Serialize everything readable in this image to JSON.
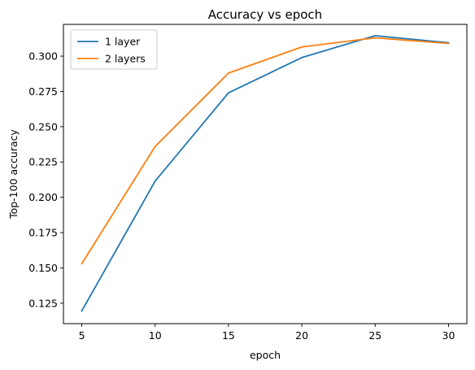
{
  "chart_data": {
    "type": "line",
    "title": "Accuracy vs epoch",
    "xlabel": "epoch",
    "ylabel": "Top-100 accuracy",
    "x": [
      5,
      10,
      15,
      20,
      25,
      30
    ],
    "xlim": [
      3.75,
      31.25
    ],
    "ylim": [
      0.1105,
      0.3225
    ],
    "xticks": [
      5,
      10,
      15,
      20,
      25,
      30
    ],
    "yticks": [
      0.125,
      0.15,
      0.175,
      0.2,
      0.225,
      0.25,
      0.275,
      0.3
    ],
    "ytick_labels": [
      "0.125",
      "0.150",
      "0.175",
      "0.200",
      "0.225",
      "0.250",
      "0.275",
      "0.300"
    ],
    "grid": false,
    "legend_position": "upper-left",
    "series": [
      {
        "name": "1 layer",
        "color": "#1f77b4",
        "values": [
          0.1195,
          0.2115,
          0.274,
          0.299,
          0.3145,
          0.3095
        ]
      },
      {
        "name": "2 layers",
        "color": "#ff7f0e",
        "values": [
          0.153,
          0.236,
          0.288,
          0.3065,
          0.313,
          0.309
        ]
      }
    ]
  }
}
